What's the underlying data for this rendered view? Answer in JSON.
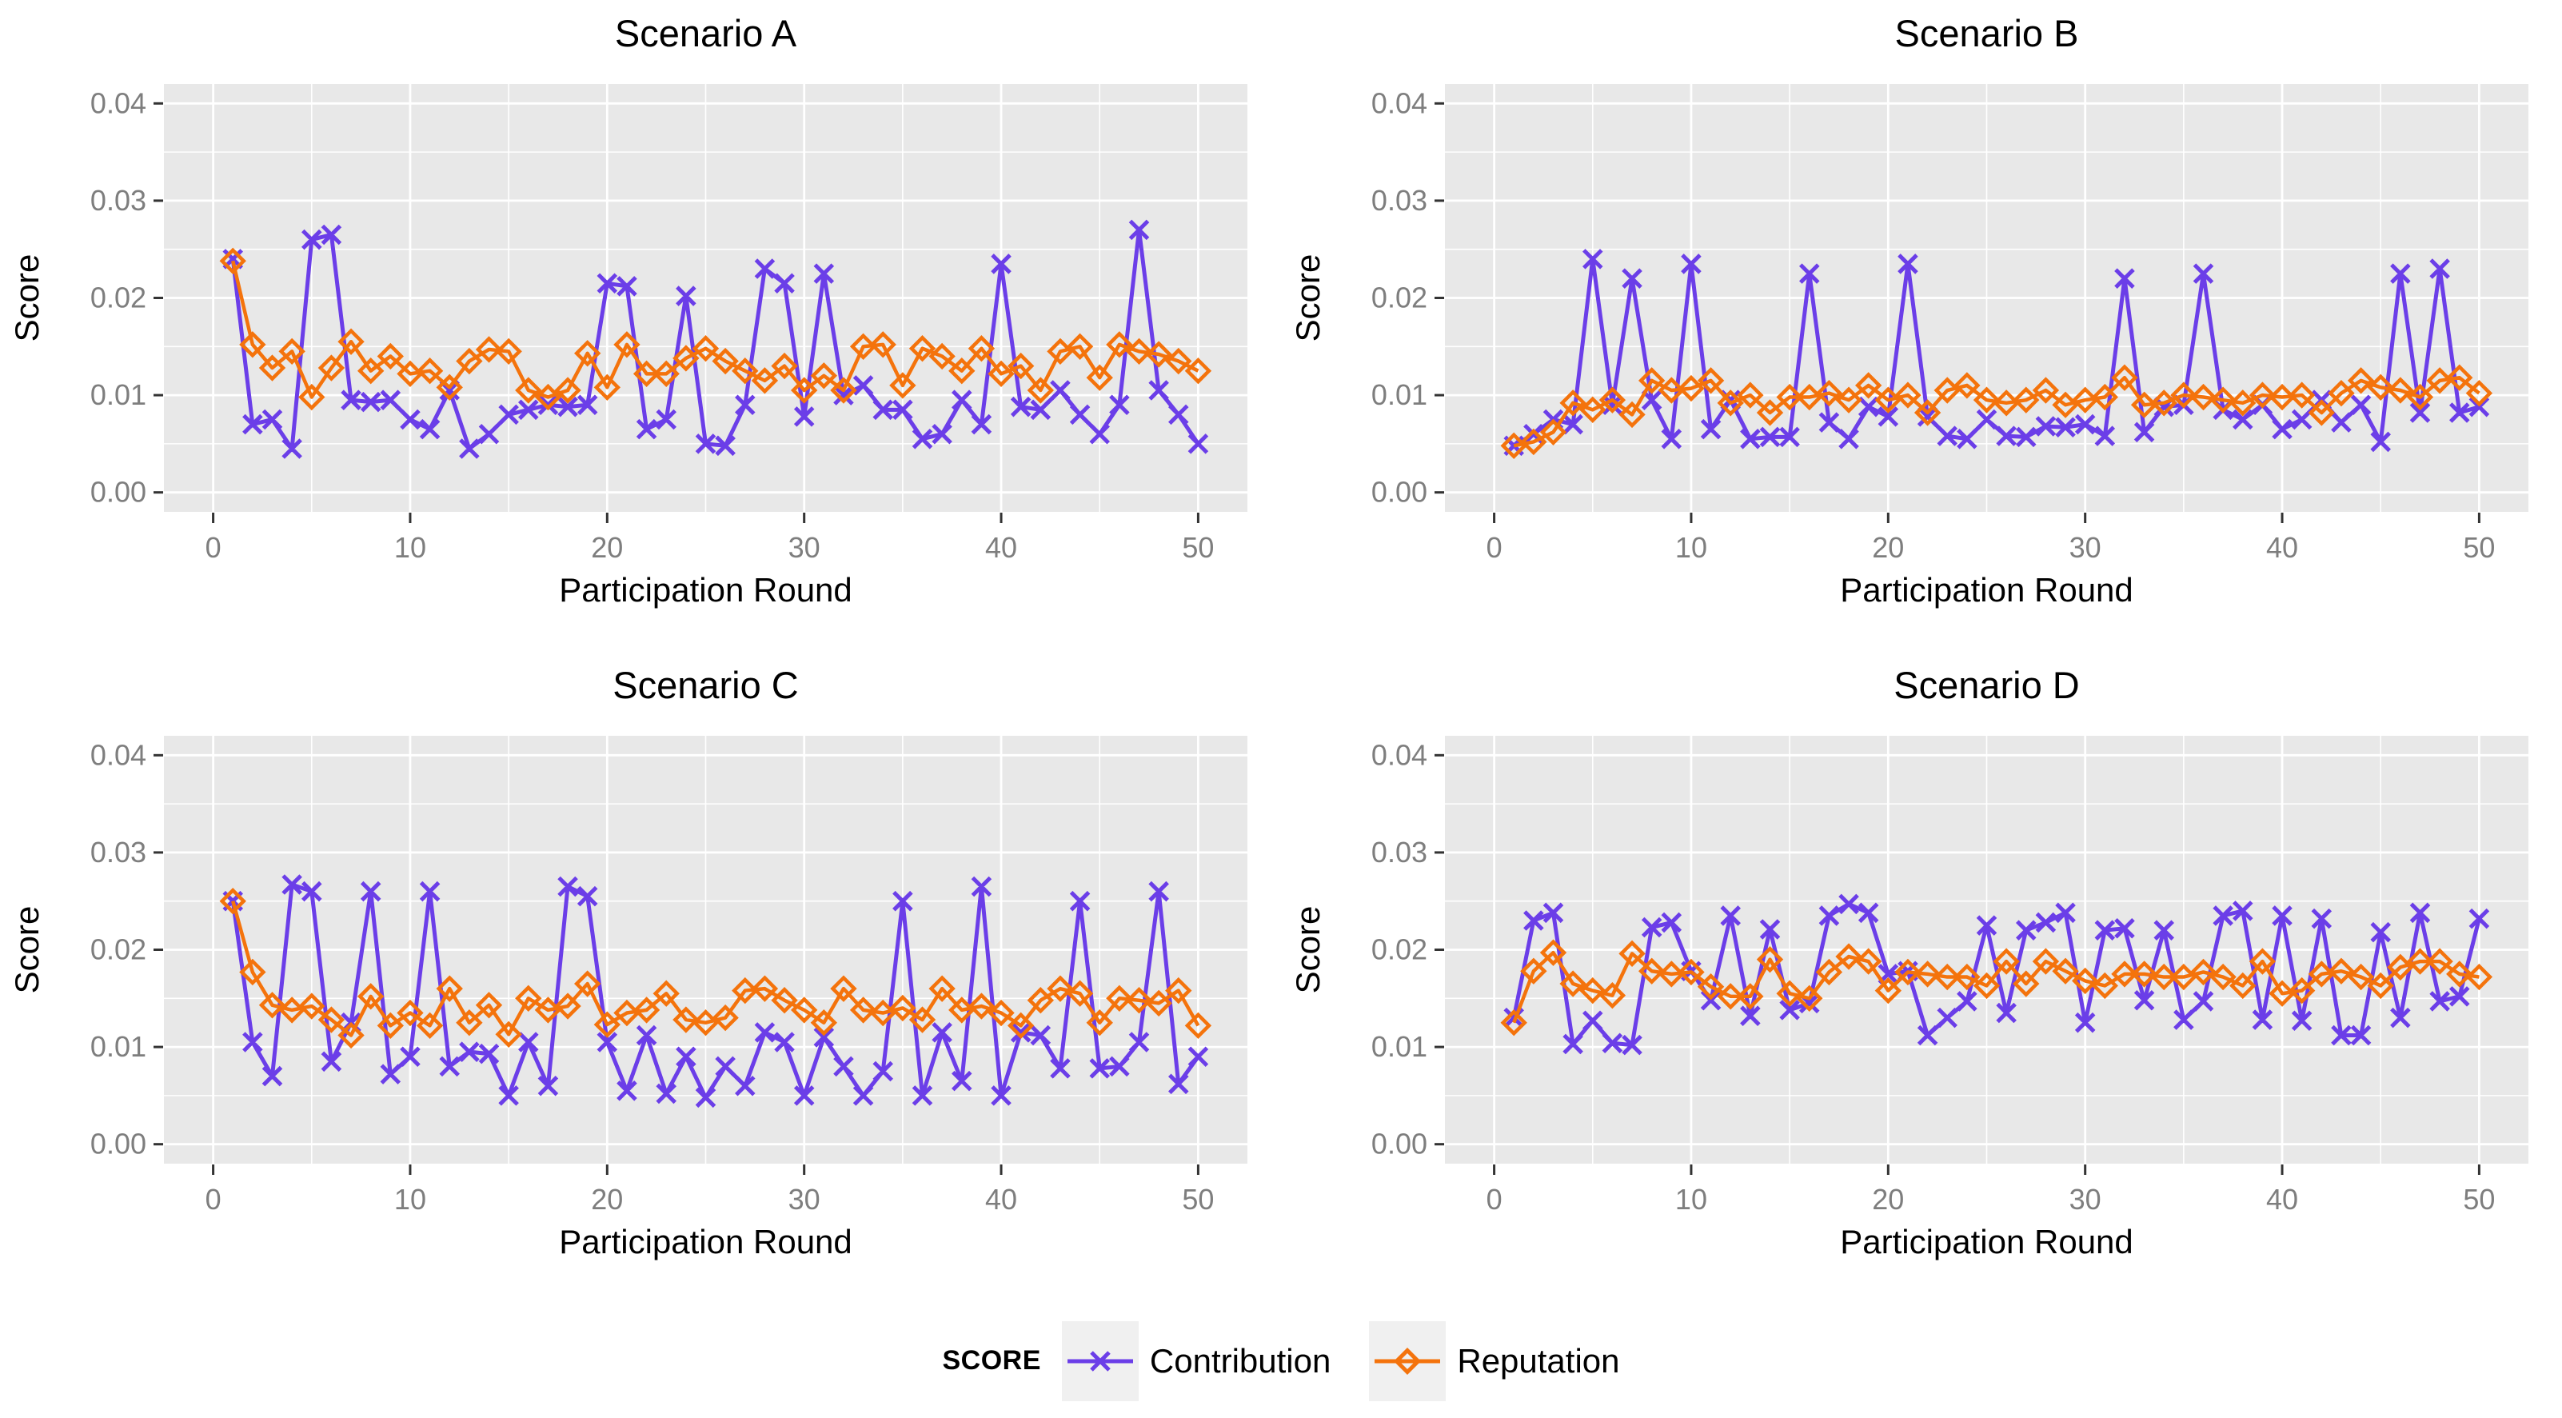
{
  "style": {
    "panel_bg": "#E8E8E8",
    "grid_color": "#FFFFFF",
    "tick_mark_color": "#333333",
    "tick_label_color": "#7E7E7E",
    "title_color": "#000000",
    "axis_title_color": "#000000",
    "contribution_color": "#6B3EE8",
    "reputation_color": "#F4730C",
    "legend_key_bg": "#F0F0F0"
  },
  "legend": {
    "title": "SCORE",
    "items": [
      {
        "label": "Contribution",
        "marker": "x",
        "color_key": "contribution_color"
      },
      {
        "label": "Reputation",
        "marker": "diamond",
        "color_key": "reputation_color"
      }
    ]
  },
  "chart_data": [
    {
      "type": "line",
      "title": "Scenario A",
      "xlabel": "Participation Round",
      "ylabel": "Score",
      "xlim": [
        0,
        50
      ],
      "ylim": [
        0.0,
        0.04
      ],
      "x_ticks": [
        0,
        10,
        20,
        30,
        40,
        50
      ],
      "y_ticks": [
        0.0,
        0.01,
        0.02,
        0.03,
        0.04
      ],
      "x": "rounds 1 to 50",
      "series": [
        {
          "name": "Contribution",
          "marker": "x",
          "values": [
            0.024,
            0.007,
            0.0075,
            0.0045,
            0.026,
            0.0265,
            0.0095,
            0.0093,
            0.0095,
            0.0075,
            0.0065,
            0.0105,
            0.0045,
            0.006,
            0.008,
            0.0085,
            0.009,
            0.0088,
            0.009,
            0.0215,
            0.0212,
            0.0065,
            0.0075,
            0.0202,
            0.005,
            0.0048,
            0.009,
            0.023,
            0.0215,
            0.0078,
            0.0225,
            0.01,
            0.011,
            0.0085,
            0.0085,
            0.0055,
            0.006,
            0.0095,
            0.007,
            0.0235,
            0.0088,
            0.0085,
            0.0105,
            0.008,
            0.006,
            0.009,
            0.027,
            0.0105,
            0.008,
            0.005
          ]
        },
        {
          "name": "Reputation",
          "marker": "diamond",
          "values": [
            0.0238,
            0.0152,
            0.0128,
            0.0145,
            0.0098,
            0.0128,
            0.0155,
            0.0125,
            0.014,
            0.0122,
            0.0125,
            0.0108,
            0.0135,
            0.0147,
            0.0145,
            0.0105,
            0.0098,
            0.0105,
            0.0143,
            0.0108,
            0.0152,
            0.0122,
            0.0122,
            0.0138,
            0.0148,
            0.0135,
            0.0125,
            0.0115,
            0.013,
            0.0105,
            0.012,
            0.0105,
            0.015,
            0.0152,
            0.011,
            0.0148,
            0.014,
            0.0125,
            0.0148,
            0.0122,
            0.013,
            0.0105,
            0.0145,
            0.015,
            0.0118,
            0.0152,
            0.0145,
            0.0142,
            0.0135,
            0.0125
          ]
        }
      ]
    },
    {
      "type": "line",
      "title": "Scenario B",
      "xlabel": "Participation Round",
      "ylabel": "Score",
      "xlim": [
        0,
        50
      ],
      "ylim": [
        0.0,
        0.04
      ],
      "x_ticks": [
        0,
        10,
        20,
        30,
        40,
        50
      ],
      "y_ticks": [
        0.0,
        0.01,
        0.02,
        0.03,
        0.04
      ],
      "x": "rounds 1 to 50",
      "series": [
        {
          "name": "Contribution",
          "marker": "x",
          "values": [
            0.0048,
            0.006,
            0.0075,
            0.007,
            0.024,
            0.009,
            0.022,
            0.0095,
            0.0055,
            0.0235,
            0.0065,
            0.0095,
            0.0055,
            0.0057,
            0.0057,
            0.0225,
            0.0072,
            0.0055,
            0.0088,
            0.0078,
            0.0235,
            0.0078,
            0.0058,
            0.0055,
            0.0075,
            0.0058,
            0.0057,
            0.0068,
            0.0067,
            0.007,
            0.0058,
            0.022,
            0.0062,
            0.0088,
            0.009,
            0.0225,
            0.0085,
            0.0075,
            0.009,
            0.0065,
            0.0075,
            0.0095,
            0.0072,
            0.009,
            0.0052,
            0.0225,
            0.0082,
            0.023,
            0.0082,
            0.0088
          ]
        },
        {
          "name": "Reputation",
          "marker": "diamond",
          "values": [
            0.0048,
            0.0052,
            0.0062,
            0.0092,
            0.0085,
            0.0095,
            0.008,
            0.0115,
            0.0105,
            0.0107,
            0.0115,
            0.0092,
            0.01,
            0.0082,
            0.0098,
            0.0098,
            0.0102,
            0.0095,
            0.011,
            0.0095,
            0.01,
            0.0082,
            0.0105,
            0.011,
            0.0095,
            0.0092,
            0.0095,
            0.0105,
            0.009,
            0.0095,
            0.0098,
            0.0118,
            0.009,
            0.0092,
            0.01,
            0.0098,
            0.0095,
            0.0092,
            0.01,
            0.0098,
            0.01,
            0.0082,
            0.0102,
            0.0115,
            0.0108,
            0.0105,
            0.0098,
            0.0115,
            0.0118,
            0.0102
          ]
        }
      ]
    },
    {
      "type": "line",
      "title": "Scenario C",
      "xlabel": "Participation Round",
      "ylabel": "Score",
      "xlim": [
        0,
        50
      ],
      "ylim": [
        0.0,
        0.04
      ],
      "x_ticks": [
        0,
        10,
        20,
        30,
        40,
        50
      ],
      "y_ticks": [
        0.0,
        0.01,
        0.02,
        0.03,
        0.04
      ],
      "x": "rounds 1 to 50",
      "series": [
        {
          "name": "Contribution",
          "marker": "x",
          "values": [
            0.025,
            0.0105,
            0.007,
            0.0267,
            0.026,
            0.0085,
            0.0125,
            0.026,
            0.0072,
            0.009,
            0.026,
            0.008,
            0.0095,
            0.0093,
            0.005,
            0.0105,
            0.006,
            0.0265,
            0.0255,
            0.0105,
            0.0055,
            0.0112,
            0.0052,
            0.009,
            0.0048,
            0.008,
            0.006,
            0.0115,
            0.0105,
            0.005,
            0.011,
            0.008,
            0.005,
            0.0075,
            0.025,
            0.005,
            0.0115,
            0.0065,
            0.0265,
            0.005,
            0.0115,
            0.0112,
            0.0078,
            0.025,
            0.0078,
            0.008,
            0.0105,
            0.026,
            0.0062,
            0.009
          ]
        },
        {
          "name": "Reputation",
          "marker": "diamond",
          "values": [
            0.025,
            0.0177,
            0.0143,
            0.0138,
            0.0142,
            0.0128,
            0.0112,
            0.0152,
            0.0122,
            0.0135,
            0.0122,
            0.016,
            0.0125,
            0.0143,
            0.0113,
            0.015,
            0.0138,
            0.0142,
            0.0165,
            0.0123,
            0.0135,
            0.0138,
            0.0155,
            0.0128,
            0.0125,
            0.013,
            0.0158,
            0.016,
            0.0148,
            0.0138,
            0.0125,
            0.016,
            0.0138,
            0.0135,
            0.014,
            0.0128,
            0.016,
            0.0138,
            0.0142,
            0.0135,
            0.0122,
            0.0148,
            0.016,
            0.0155,
            0.0125,
            0.015,
            0.0148,
            0.0145,
            0.0158,
            0.0122
          ]
        }
      ]
    },
    {
      "type": "line",
      "title": "Scenario D",
      "xlabel": "Participation Round",
      "ylabel": "Score",
      "xlim": [
        0,
        50
      ],
      "ylim": [
        0.0,
        0.04
      ],
      "x_ticks": [
        0,
        10,
        20,
        30,
        40,
        50
      ],
      "y_ticks": [
        0.0,
        0.01,
        0.02,
        0.03,
        0.04
      ],
      "x": "rounds 1 to 50",
      "series": [
        {
          "name": "Contribution",
          "marker": "x",
          "values": [
            0.013,
            0.023,
            0.0238,
            0.0103,
            0.0127,
            0.0104,
            0.0102,
            0.0223,
            0.0228,
            0.0178,
            0.0148,
            0.0235,
            0.0132,
            0.0221,
            0.0138,
            0.0145,
            0.0235,
            0.0247,
            0.0238,
            0.0175,
            0.0178,
            0.0112,
            0.013,
            0.0147,
            0.0225,
            0.0135,
            0.022,
            0.0228,
            0.0238,
            0.0125,
            0.022,
            0.0222,
            0.0148,
            0.022,
            0.0128,
            0.0147,
            0.0235,
            0.024,
            0.0128,
            0.0235,
            0.0127,
            0.0232,
            0.0112,
            0.0112,
            0.0218,
            0.013,
            0.0238,
            0.0147,
            0.0152,
            0.0232
          ]
        },
        {
          "name": "Reputation",
          "marker": "diamond",
          "values": [
            0.0125,
            0.0178,
            0.0197,
            0.0165,
            0.0158,
            0.0153,
            0.0196,
            0.0178,
            0.0175,
            0.0177,
            0.0162,
            0.0152,
            0.0152,
            0.019,
            0.0155,
            0.015,
            0.0177,
            0.0193,
            0.0188,
            0.0158,
            0.0177,
            0.0175,
            0.0172,
            0.0172,
            0.0163,
            0.0188,
            0.0165,
            0.0188,
            0.0178,
            0.0168,
            0.0163,
            0.0175,
            0.0175,
            0.0172,
            0.0172,
            0.0177,
            0.0172,
            0.0163,
            0.0188,
            0.0155,
            0.0158,
            0.0175,
            0.0178,
            0.0172,
            0.0163,
            0.0182,
            0.0188,
            0.0188,
            0.0175,
            0.0172
          ]
        }
      ]
    }
  ]
}
